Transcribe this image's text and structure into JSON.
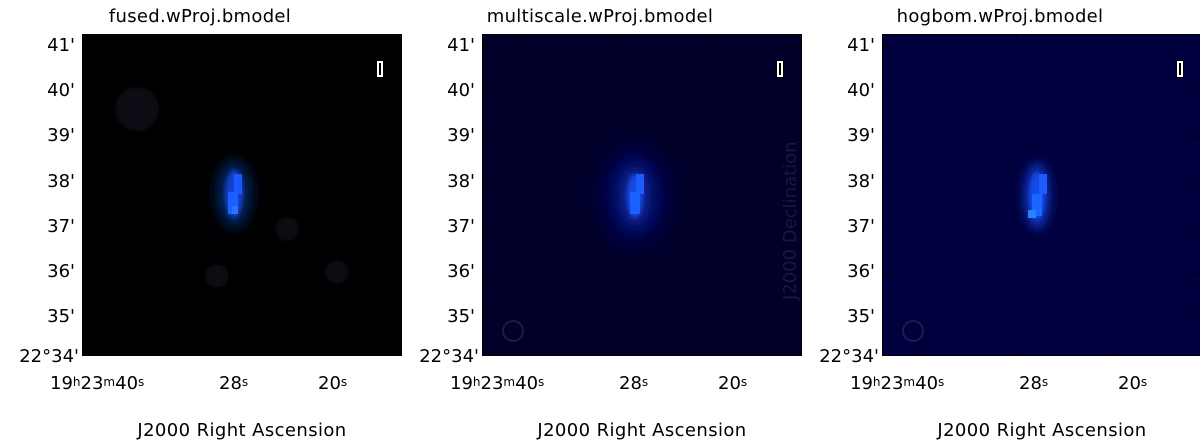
{
  "panels": [
    {
      "title": "fused.wProj.bmodel",
      "background": "#000000",
      "beam_circle": false,
      "y_ticks": [
        "41'",
        "40'",
        "39'",
        "38'",
        "37'",
        "36'",
        "35'",
        "22°34'"
      ],
      "x_ticks": [
        {
          "h": "19",
          "hs": "h",
          "m": "23",
          "ms": "m",
          "s": "40",
          "ss": "s"
        },
        {
          "s": "28",
          "ss": "s"
        },
        {
          "s": "20",
          "ss": "s"
        }
      ],
      "x_axis_title": "J2000 Right Ascension"
    },
    {
      "title": "multiscale.wProj.bmodel",
      "background": "#000028",
      "beam_circle": true,
      "y_ticks": [
        "41'",
        "40'",
        "39'",
        "38'",
        "37'",
        "36'",
        "35'",
        "22°34'"
      ],
      "x_ticks": [
        {
          "h": "19",
          "hs": "h",
          "m": "23",
          "ms": "m",
          "s": "40",
          "ss": "s"
        },
        {
          "s": "28",
          "ss": "s"
        },
        {
          "s": "20",
          "ss": "s"
        }
      ],
      "x_axis_title": "J2000 Right Ascension"
    },
    {
      "title": "hogbom.wProj.bmodel",
      "background": "#00003e",
      "beam_circle": true,
      "y_ticks": [
        "41'",
        "40'",
        "39'",
        "38'",
        "37'",
        "36'",
        "35'",
        "22°34'"
      ],
      "x_ticks": [
        {
          "h": "19",
          "hs": "h",
          "m": "23",
          "ms": "m",
          "s": "40",
          "ss": "s"
        },
        {
          "s": "28",
          "ss": "s"
        },
        {
          "s": "20",
          "ss": "s"
        }
      ],
      "x_axis_title": "J2000 Right Ascension"
    }
  ],
  "faint_label": "J2000 Declination"
}
